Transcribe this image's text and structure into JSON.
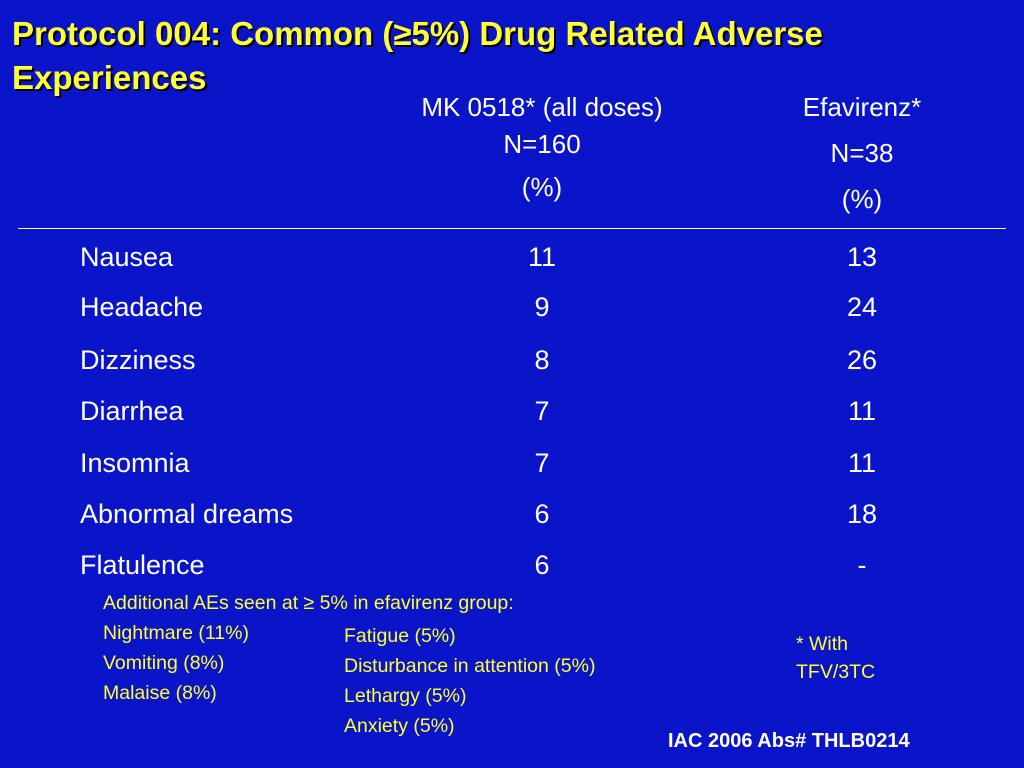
{
  "title": "Protocol 004: Common (≥5%) Drug Related Adverse Experiences",
  "columns": {
    "mk": {
      "line1": "MK 0518* (all doses)",
      "line2": "N=160",
      "line3": "(%)"
    },
    "efv": {
      "line1": "Efavirenz*",
      "line2": "N=38",
      "line3": "(%)"
    }
  },
  "rows": [
    {
      "label": "Nausea",
      "mk": "11",
      "efv": "13"
    },
    {
      "label": "Headache",
      "mk": "9",
      "efv": "24"
    },
    {
      "label": "Dizziness",
      "mk": "8",
      "efv": "26"
    },
    {
      "label": "Diarrhea",
      "mk": "7",
      "efv": "11"
    },
    {
      "label": "Insomnia",
      "mk": "7",
      "efv": "11"
    },
    {
      "label": "Abnormal dreams",
      "mk": "6",
      "efv": "18"
    },
    {
      "label": "Flatulence",
      "mk": "6",
      "efv": "-"
    }
  ],
  "additional": {
    "heading": "Additional AEs seen at ≥ 5% in efavirenz group:",
    "left": [
      "Nightmare (11%)",
      "Vomiting (8%)",
      "Malaise (8%)"
    ],
    "right": [
      "Fatigue (5%)",
      "Disturbance in attention (5%)",
      "Lethargy (5%)",
      "Anxiety (5%)"
    ]
  },
  "footnote": {
    "line1": "* With",
    "line2": "TFV/3TC"
  },
  "citation": "IAC 2006 Abs# THLB0214",
  "colors": {
    "background": "#0a14c8",
    "title": "#ffff33",
    "text": "#ffffff",
    "note": "#ffff33"
  }
}
